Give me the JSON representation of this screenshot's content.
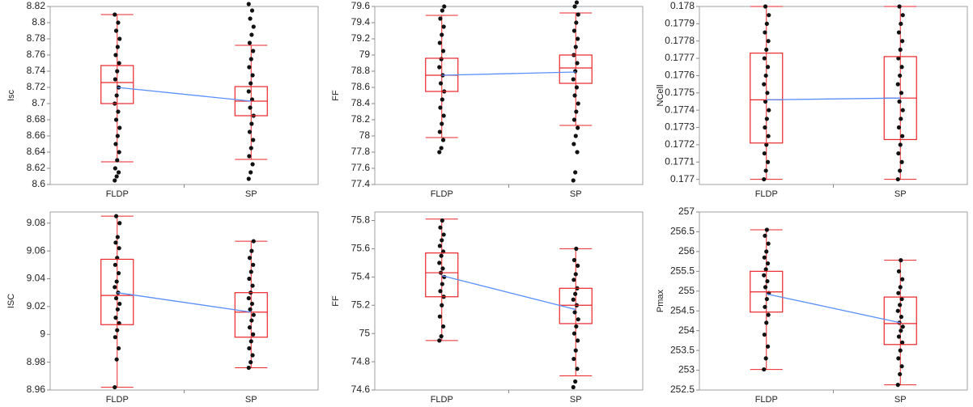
{
  "chart_data": [
    {
      "type": "box",
      "ylabel": "Isc",
      "categories": [
        "FLDP",
        "SP"
      ],
      "boxes": [
        {
          "min": 8.628,
          "q1": 8.7,
          "median": 8.726,
          "q3": 8.747,
          "max": 8.81
        },
        {
          "min": 8.631,
          "q1": 8.685,
          "median": 8.703,
          "q3": 8.721,
          "max": 8.772
        }
      ],
      "means": [
        8.72,
        8.703
      ],
      "points": [
        [
          8.605,
          8.61,
          8.615,
          8.62,
          8.63,
          8.64,
          8.65,
          8.66,
          8.67,
          8.68,
          8.69,
          8.7,
          8.71,
          8.72,
          8.73,
          8.74,
          8.75,
          8.76,
          8.77,
          8.78,
          8.79,
          8.8,
          8.81
        ],
        [
          8.607,
          8.615,
          8.625,
          8.635,
          8.645,
          8.655,
          8.665,
          8.675,
          8.685,
          8.695,
          8.705,
          8.715,
          8.725,
          8.735,
          8.745,
          8.755,
          8.765,
          8.775,
          8.785,
          8.795,
          8.805,
          8.815,
          8.823
        ]
      ],
      "ylim": [
        8.6,
        8.82
      ],
      "yticks": [
        8.6,
        8.62,
        8.64,
        8.66,
        8.68,
        8.7,
        8.72,
        8.74,
        8.76,
        8.78,
        8.8,
        8.82
      ],
      "box_color": "#e8262b",
      "mean_color": "#5b8ff9",
      "point_color": "#111111"
    },
    {
      "type": "box",
      "ylabel": "FF",
      "categories": [
        "FLDP",
        "SP"
      ],
      "boxes": [
        {
          "min": 77.98,
          "q1": 78.55,
          "median": 78.75,
          "q3": 78.96,
          "max": 79.49
        },
        {
          "min": 78.13,
          "q1": 78.65,
          "median": 78.84,
          "q3": 79.0,
          "max": 79.52
        }
      ],
      "means": [
        78.75,
        78.79
      ],
      "points": [
        [
          77.8,
          77.85,
          77.95,
          78.05,
          78.15,
          78.25,
          78.35,
          78.45,
          78.55,
          78.65,
          78.75,
          78.85,
          78.95,
          79.05,
          79.15,
          79.25,
          79.35,
          79.45,
          79.55,
          79.6
        ],
        [
          77.45,
          77.55,
          77.8,
          77.9,
          78.0,
          78.1,
          78.2,
          78.3,
          78.4,
          78.5,
          78.6,
          78.7,
          78.8,
          78.9,
          79.0,
          79.1,
          79.2,
          79.3,
          79.4,
          79.5,
          79.6,
          79.65
        ]
      ],
      "ylim": [
        77.4,
        79.6
      ],
      "yticks": [
        77.4,
        77.6,
        77.8,
        78,
        78.2,
        78.4,
        78.6,
        78.8,
        79,
        79.2,
        79.4,
        79.6
      ],
      "box_color": "#e8262b",
      "mean_color": "#5b8ff9",
      "point_color": "#111111"
    },
    {
      "type": "box",
      "ylabel": "NCell",
      "categories": [
        "FLDP",
        "SP"
      ],
      "boxes": [
        {
          "min": 0.177,
          "q1": 0.17721,
          "median": 0.17746,
          "q3": 0.17773,
          "max": 0.178
        },
        {
          "min": 0.177,
          "q1": 0.17723,
          "median": 0.17747,
          "q3": 0.17771,
          "max": 0.178
        }
      ],
      "means": [
        0.17746,
        0.17747
      ],
      "points": [
        [
          0.177,
          0.17705,
          0.1771,
          0.17715,
          0.1772,
          0.17725,
          0.1773,
          0.17735,
          0.1774,
          0.17745,
          0.1775,
          0.17755,
          0.1776,
          0.17765,
          0.1777,
          0.17775,
          0.1778,
          0.17785,
          0.1779,
          0.17795,
          0.178
        ],
        [
          0.177,
          0.17705,
          0.1771,
          0.17715,
          0.1772,
          0.17725,
          0.1773,
          0.17735,
          0.1774,
          0.17745,
          0.1775,
          0.17755,
          0.1776,
          0.17765,
          0.1777,
          0.17775,
          0.1778,
          0.17785,
          0.1779,
          0.17795,
          0.178
        ]
      ],
      "ylim": [
        0.17697,
        0.178
      ],
      "yticks": [
        0.177,
        0.1771,
        0.1772,
        0.1773,
        0.1774,
        0.1775,
        0.1776,
        0.1777,
        0.1778,
        0.1779,
        0.178
      ],
      "box_color": "#e8262b",
      "mean_color": "#5b8ff9",
      "point_color": "#111111"
    },
    {
      "type": "box",
      "ylabel": "ISC",
      "categories": [
        "FLDP",
        "SP"
      ],
      "boxes": [
        {
          "min": 8.962,
          "q1": 9.007,
          "median": 9.028,
          "q3": 9.054,
          "max": 9.085
        },
        {
          "min": 8.976,
          "q1": 8.998,
          "median": 9.016,
          "q3": 9.03,
          "max": 9.067
        }
      ],
      "means": [
        9.03,
        9.016
      ],
      "points": [
        [
          8.962,
          8.982,
          8.99,
          8.998,
          9.003,
          9.008,
          9.012,
          9.018,
          9.022,
          9.026,
          9.03,
          9.034,
          9.038,
          9.044,
          9.05,
          9.055,
          9.062,
          9.066,
          9.07,
          9.08,
          9.085
        ],
        [
          8.976,
          8.98,
          8.985,
          8.99,
          8.995,
          9.0,
          9.005,
          9.01,
          9.014,
          9.018,
          9.022,
          9.026,
          9.03,
          9.035,
          9.04,
          9.045,
          9.05,
          9.055,
          9.06,
          9.067
        ]
      ],
      "ylim": [
        8.96,
        9.088
      ],
      "yticks": [
        8.96,
        8.98,
        9,
        9.02,
        9.04,
        9.06,
        9.08
      ],
      "box_color": "#e8262b",
      "mean_color": "#5b8ff9",
      "point_color": "#111111"
    },
    {
      "type": "box",
      "ylabel": "FF",
      "categories": [
        "FLDP",
        "SP"
      ],
      "boxes": [
        {
          "min": 74.95,
          "q1": 75.26,
          "median": 75.43,
          "q3": 75.57,
          "max": 75.81
        },
        {
          "min": 74.7,
          "q1": 75.07,
          "median": 75.2,
          "q3": 75.32,
          "max": 75.6
        }
      ],
      "means": [
        75.41,
        75.17
      ],
      "points": [
        [
          74.95,
          74.98,
          75.05,
          75.12,
          75.2,
          75.26,
          75.3,
          75.35,
          75.4,
          75.43,
          75.46,
          75.5,
          75.55,
          75.58,
          75.62,
          75.66,
          75.7,
          75.75,
          75.8
        ],
        [
          74.62,
          74.66,
          74.75,
          74.82,
          74.88,
          74.95,
          75.0,
          75.05,
          75.1,
          75.15,
          75.2,
          75.24,
          75.28,
          75.32,
          75.38,
          75.42,
          75.48,
          75.52,
          75.6
        ]
      ],
      "ylim": [
        74.6,
        75.86
      ],
      "yticks": [
        74.6,
        74.8,
        75,
        75.2,
        75.4,
        75.6,
        75.8
      ],
      "box_color": "#e8262b",
      "mean_color": "#5b8ff9",
      "point_color": "#111111"
    },
    {
      "type": "box",
      "ylabel": "Pmax",
      "categories": [
        "FLDP",
        "SP"
      ],
      "boxes": [
        {
          "min": 253.02,
          "q1": 254.47,
          "median": 254.98,
          "q3": 255.5,
          "max": 256.55
        },
        {
          "min": 252.63,
          "q1": 253.65,
          "median": 254.18,
          "q3": 254.85,
          "max": 255.78
        }
      ],
      "means": [
        254.93,
        254.2
      ],
      "points": [
        [
          253.02,
          253.3,
          253.6,
          253.9,
          254.2,
          254.4,
          254.6,
          254.8,
          254.95,
          255.1,
          255.25,
          255.4,
          255.55,
          255.7,
          255.85,
          256.0,
          256.2,
          256.4,
          256.55
        ],
        [
          252.63,
          252.9,
          253.1,
          253.3,
          253.5,
          253.7,
          253.85,
          254.0,
          254.1,
          254.2,
          254.35,
          254.5,
          254.65,
          254.8,
          254.95,
          255.1,
          255.3,
          255.5,
          255.78
        ]
      ],
      "ylim": [
        252.5,
        257
      ],
      "yticks": [
        252.5,
        253,
        253.5,
        254,
        254.5,
        255,
        255.5,
        256,
        256.5,
        257
      ],
      "box_color": "#e8262b",
      "mean_color": "#5b8ff9",
      "point_color": "#111111"
    }
  ]
}
